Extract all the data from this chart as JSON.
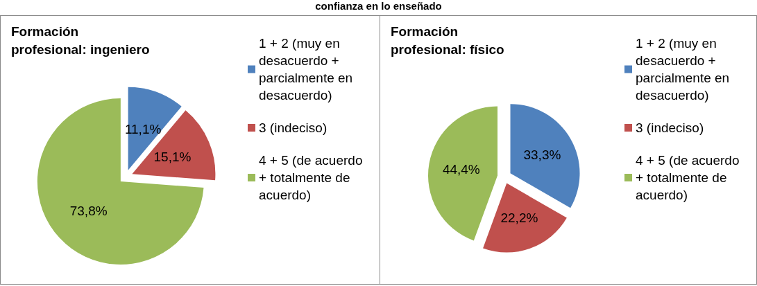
{
  "chart_data": [
    {
      "type": "pie",
      "title": "Formación\nprofesional: ingeniero",
      "annotations": [
        "confianza en lo enseñado"
      ],
      "categories": [
        "1 + 2 (muy en desacuerdo + parcialmente en desacuerdo)",
        "3 (indeciso)",
        "4 + 5 (de acuerdo + totalmente de acuerdo)"
      ],
      "values": [
        11.1,
        15.1,
        73.8
      ],
      "value_labels": [
        "11,1%",
        "15,1%",
        "73,8%"
      ],
      "colors": [
        "#4f81bd",
        "#c0504d",
        "#9bbb59"
      ],
      "legend": "right"
    },
    {
      "type": "pie",
      "title": "Formación\nprofesional: físico",
      "categories": [
        "1 + 2 (muy en desacuerdo + parcialmente en desacuerdo)",
        "3 (indeciso)",
        "4 + 5 (de acuerdo + totalmente de acuerdo)"
      ],
      "values": [
        33.3,
        22.2,
        44.4
      ],
      "value_labels": [
        "33,3%",
        "22,2%",
        "44,4%"
      ],
      "colors": [
        "#4f81bd",
        "#c0504d",
        "#9bbb59"
      ],
      "legend": "right"
    }
  ]
}
